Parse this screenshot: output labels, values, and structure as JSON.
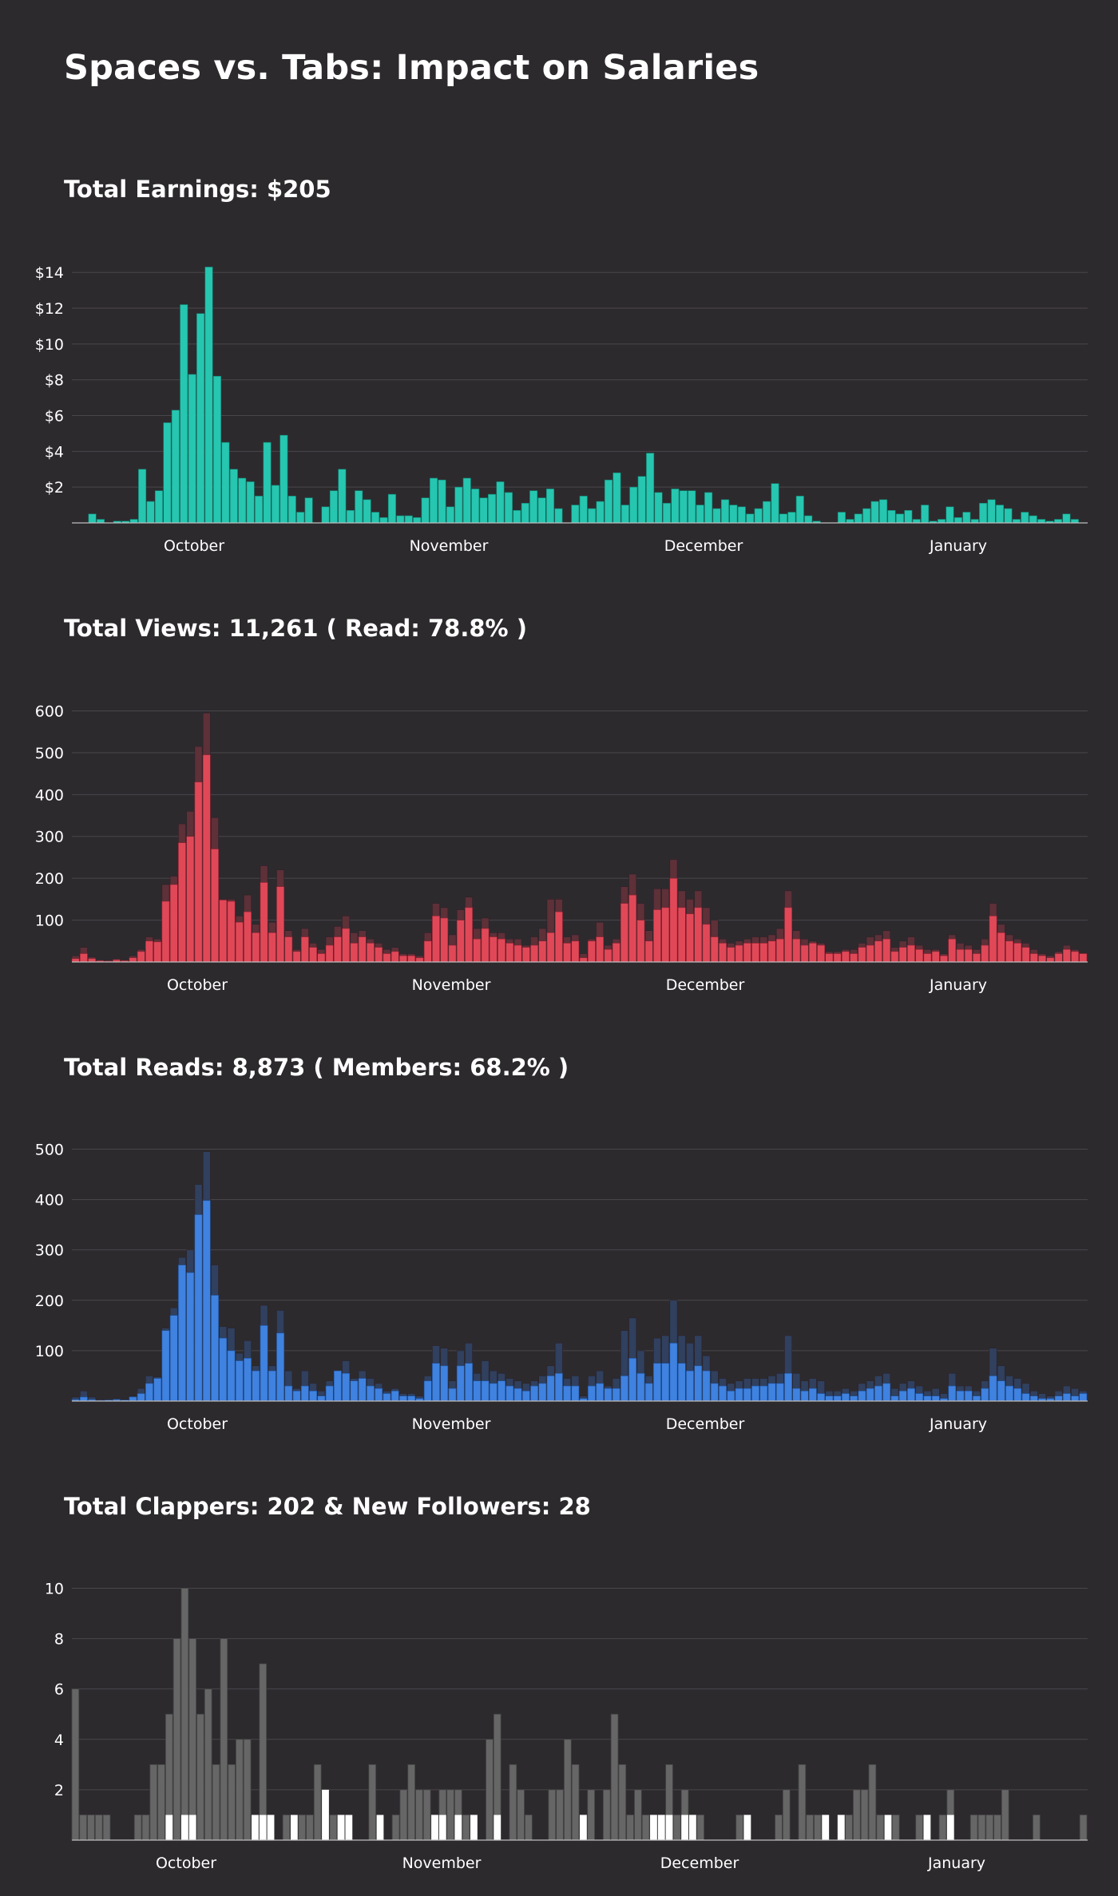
{
  "page": {
    "title": "Spaces vs. Tabs: Impact on Salaries"
  },
  "sections": [
    {
      "id": "earnings",
      "title": "Total Earnings: $205"
    },
    {
      "id": "views",
      "title": "Total Views: 11,261  ( Read: 78.8% )"
    },
    {
      "id": "reads",
      "title": "Total Reads: 8,873  ( Members: 68.2% )"
    },
    {
      "id": "clappers",
      "title": "Total Clappers: 202  &  New Followers: 28"
    }
  ],
  "chart_data": [
    {
      "id": "earnings",
      "type": "bar",
      "title": "Total Earnings: $205",
      "x_tick_labels": [
        "October",
        "November",
        "December",
        "January"
      ],
      "y_ticks": [
        2,
        4,
        6,
        8,
        10,
        12,
        14
      ],
      "y_tick_labels": [
        "$2",
        "$4",
        "$6",
        "$8",
        "$10",
        "$12",
        "$14"
      ],
      "ylim": [
        0,
        14.5
      ],
      "grid": true,
      "colors": {
        "bar": "#26c6b0",
        "bar_edge": "#12806f"
      },
      "series": [
        {
          "values": [
            0,
            0,
            0.5,
            0.2,
            0,
            0.1,
            0.1,
            0.2,
            3.0,
            1.2,
            1.8,
            5.6,
            6.3,
            12.2,
            8.3,
            11.7,
            14.3,
            8.2,
            4.5,
            3.0,
            2.5,
            2.3,
            1.5,
            4.5,
            2.1,
            4.9,
            1.5,
            0.6,
            1.4,
            0,
            0.9,
            1.8,
            3.0,
            0.7,
            1.8,
            1.3,
            0.6,
            0.3,
            1.6,
            0.4,
            0.4,
            0.3,
            1.4,
            2.5,
            2.4,
            0.9,
            2.0,
            2.5,
            1.9,
            1.4,
            1.6,
            2.3,
            1.7,
            0.7,
            1.1,
            1.8,
            1.4,
            1.9,
            0.8,
            0,
            1.0,
            1.5,
            0.8,
            1.2,
            2.4,
            2.8,
            1.0,
            2.0,
            2.6,
            3.9,
            1.7,
            1.1,
            1.9,
            1.8,
            1.8,
            1.0,
            1.7,
            0.8,
            1.3,
            1.0,
            0.9,
            0.5,
            0.8,
            1.2,
            2.2,
            0.5,
            0.6,
            1.5,
            0.4,
            0.1,
            0,
            0,
            0.6,
            0.2,
            0.5,
            0.8,
            1.2,
            1.3,
            0.7,
            0.5,
            0.7,
            0.2,
            1.0,
            0.1,
            0.2,
            0.9,
            0.3,
            0.6,
            0.2,
            1.1,
            1.3,
            1.0,
            0.8,
            0.2,
            0.6,
            0.4,
            0.2,
            0.1,
            0.2,
            0.5,
            0.2,
            0
          ]
        }
      ]
    },
    {
      "id": "views",
      "type": "bar",
      "title": "Total Views: 11,261  ( Read: 78.8% )",
      "x_tick_labels": [
        "October",
        "November",
        "December",
        "January"
      ],
      "y_ticks": [
        100,
        200,
        300,
        400,
        500,
        600
      ],
      "y_tick_labels": [
        "100",
        "200",
        "300",
        "400",
        "500",
        "600"
      ],
      "ylim": [
        0,
        620
      ],
      "grid": true,
      "colors": {
        "bar_primary": "#e04858",
        "bar_stack": "#5e3038",
        "bar_edge": "#8a2230"
      },
      "series": [
        {
          "name": "read",
          "values": [
            8,
            20,
            8,
            3,
            2,
            5,
            3,
            10,
            25,
            50,
            48,
            145,
            185,
            285,
            300,
            430,
            495,
            270,
            148,
            145,
            95,
            120,
            70,
            190,
            70,
            180,
            60,
            25,
            60,
            35,
            20,
            40,
            60,
            80,
            45,
            60,
            45,
            35,
            20,
            25,
            15,
            15,
            10,
            50,
            110,
            105,
            40,
            100,
            130,
            55,
            80,
            60,
            55,
            45,
            40,
            35,
            40,
            50,
            70,
            120,
            45,
            50,
            10,
            50,
            60,
            30,
            45,
            140,
            160,
            100,
            50,
            125,
            130,
            200,
            130,
            115,
            130,
            90,
            60,
            45,
            35,
            40,
            45,
            45,
            45,
            50,
            55,
            130,
            55,
            40,
            45,
            40,
            20,
            20,
            25,
            20,
            35,
            40,
            50,
            55,
            25,
            35,
            40,
            30,
            20,
            25,
            15,
            55,
            30,
            30,
            20,
            40,
            110,
            70,
            50,
            45,
            35,
            20,
            15,
            10,
            20,
            30,
            25,
            20
          ]
        },
        {
          "name": "total",
          "values": [
            15,
            35,
            12,
            5,
            4,
            8,
            5,
            15,
            30,
            60,
            55,
            185,
            205,
            330,
            360,
            515,
            595,
            345,
            150,
            150,
            110,
            160,
            90,
            230,
            95,
            220,
            75,
            30,
            80,
            45,
            30,
            60,
            85,
            110,
            70,
            75,
            55,
            45,
            30,
            35,
            20,
            20,
            15,
            70,
            140,
            130,
            65,
            125,
            155,
            80,
            105,
            70,
            70,
            55,
            55,
            40,
            60,
            80,
            150,
            150,
            60,
            65,
            20,
            55,
            95,
            40,
            55,
            180,
            210,
            140,
            75,
            175,
            175,
            245,
            170,
            150,
            170,
            130,
            100,
            55,
            45,
            50,
            55,
            60,
            60,
            65,
            80,
            170,
            75,
            55,
            50,
            45,
            25,
            25,
            30,
            30,
            45,
            60,
            65,
            75,
            35,
            50,
            60,
            40,
            30,
            30,
            20,
            65,
            45,
            40,
            30,
            55,
            140,
            90,
            65,
            55,
            45,
            30,
            20,
            15,
            25,
            40,
            30,
            20
          ]
        }
      ]
    },
    {
      "id": "reads",
      "type": "bar",
      "title": "Total Reads: 8,873  ( Members: 68.2% )",
      "x_tick_labels": [
        "October",
        "November",
        "December",
        "January"
      ],
      "y_ticks": [
        100,
        200,
        300,
        400,
        500
      ],
      "y_tick_labels": [
        "100",
        "200",
        "300",
        "400",
        "500"
      ],
      "ylim": [
        0,
        515
      ],
      "grid": true,
      "colors": {
        "bar_primary": "#3f82e0",
        "bar_stack": "#30405e",
        "bar_edge": "#1f4f96"
      },
      "series": [
        {
          "name": "members",
          "values": [
            3,
            8,
            3,
            1,
            2,
            3,
            2,
            8,
            15,
            35,
            45,
            140,
            170,
            270,
            255,
            370,
            398,
            210,
            125,
            100,
            80,
            85,
            60,
            150,
            60,
            135,
            30,
            20,
            30,
            20,
            10,
            30,
            60,
            55,
            40,
            45,
            30,
            25,
            15,
            20,
            10,
            10,
            5,
            40,
            75,
            70,
            25,
            70,
            75,
            40,
            40,
            35,
            40,
            30,
            25,
            20,
            30,
            35,
            50,
            55,
            30,
            30,
            5,
            30,
            35,
            25,
            25,
            50,
            85,
            55,
            35,
            75,
            75,
            115,
            75,
            60,
            70,
            60,
            35,
            30,
            20,
            25,
            25,
            30,
            30,
            35,
            35,
            55,
            25,
            20,
            25,
            15,
            10,
            10,
            15,
            10,
            20,
            25,
            30,
            35,
            10,
            20,
            25,
            15,
            10,
            10,
            5,
            30,
            20,
            20,
            10,
            25,
            50,
            40,
            30,
            25,
            15,
            10,
            5,
            5,
            10,
            15,
            10,
            15
          ]
        },
        {
          "name": "total",
          "values": [
            8,
            20,
            8,
            3,
            2,
            5,
            3,
            10,
            25,
            50,
            48,
            145,
            185,
            285,
            300,
            430,
            495,
            270,
            148,
            145,
            95,
            120,
            70,
            190,
            70,
            180,
            60,
            25,
            60,
            35,
            20,
            40,
            60,
            80,
            45,
            60,
            45,
            35,
            20,
            25,
            15,
            15,
            10,
            50,
            110,
            105,
            40,
            100,
            115,
            55,
            80,
            60,
            55,
            45,
            40,
            35,
            40,
            50,
            70,
            115,
            45,
            50,
            10,
            50,
            60,
            30,
            45,
            140,
            165,
            100,
            50,
            125,
            130,
            200,
            130,
            115,
            130,
            90,
            60,
            45,
            35,
            40,
            45,
            45,
            45,
            50,
            55,
            130,
            55,
            40,
            45,
            40,
            20,
            20,
            25,
            20,
            35,
            40,
            50,
            55,
            25,
            35,
            40,
            30,
            20,
            25,
            15,
            55,
            30,
            30,
            20,
            40,
            105,
            70,
            50,
            45,
            35,
            20,
            15,
            10,
            20,
            30,
            25,
            20
          ]
        }
      ]
    },
    {
      "id": "clappers",
      "type": "bar",
      "title": "Total Clappers: 202  &  New Followers: 28",
      "x_tick_labels": [
        "October",
        "November",
        "December",
        "January"
      ],
      "y_ticks": [
        2,
        4,
        6,
        8,
        10
      ],
      "y_tick_labels": [
        "2",
        "4",
        "6",
        "8",
        "10"
      ],
      "ylim": [
        0,
        10.3
      ],
      "grid": true,
      "colors": {
        "clappers": "#666666",
        "clappers_edge": "#444444",
        "followers": "#ffffff"
      },
      "series": [
        {
          "name": "clappers",
          "values": [
            6,
            1,
            1,
            1,
            1,
            0,
            0,
            0,
            1,
            1,
            3,
            3,
            5,
            8,
            10,
            8,
            5,
            6,
            3,
            8,
            3,
            4,
            4,
            0,
            7,
            1,
            0,
            1,
            0,
            1,
            1,
            3,
            0,
            1,
            1,
            0,
            0,
            0,
            3,
            0,
            0,
            1,
            2,
            3,
            2,
            2,
            1,
            2,
            2,
            2,
            1,
            1,
            0,
            4,
            5,
            0,
            3,
            2,
            1,
            0,
            0,
            2,
            2,
            4,
            3,
            1,
            2,
            0,
            2,
            5,
            3,
            1,
            2,
            1,
            1,
            1,
            3,
            1,
            2,
            1,
            1,
            0,
            0,
            0,
            0,
            1,
            1,
            0,
            0,
            0,
            1,
            2,
            0,
            3,
            1,
            1,
            1,
            0,
            1,
            1,
            2,
            2,
            3,
            1,
            0,
            1,
            0,
            0,
            1,
            1,
            0,
            1,
            2,
            0,
            0,
            1,
            1,
            1,
            1,
            2,
            0,
            0,
            0,
            1,
            0,
            0,
            0,
            0,
            0,
            1
          ]
        },
        {
          "name": "followers",
          "values": [
            0,
            0,
            0,
            0,
            0,
            0,
            0,
            0,
            0,
            0,
            0,
            0,
            1,
            0,
            1,
            1,
            0,
            0,
            0,
            0,
            0,
            0,
            0,
            1,
            1,
            1,
            0,
            0,
            1,
            0,
            0,
            0,
            2,
            0,
            1,
            1,
            0,
            0,
            0,
            1,
            0,
            0,
            0,
            0,
            0,
            0,
            1,
            1,
            0,
            1,
            0,
            1,
            0,
            0,
            1,
            0,
            0,
            0,
            0,
            0,
            0,
            0,
            0,
            0,
            0,
            1,
            0,
            0,
            0,
            0,
            0,
            0,
            0,
            0,
            1,
            1,
            1,
            0,
            1,
            1,
            0,
            0,
            0,
            0,
            0,
            0,
            1,
            0,
            0,
            0,
            0,
            0,
            0,
            0,
            0,
            0,
            1,
            0,
            1,
            0,
            0,
            0,
            0,
            0,
            1,
            0,
            0,
            0,
            0,
            1,
            0,
            0,
            1,
            0,
            0,
            0,
            0,
            0,
            0,
            0,
            0,
            0,
            0,
            0,
            0,
            0,
            0,
            0,
            0,
            0
          ]
        }
      ]
    }
  ]
}
